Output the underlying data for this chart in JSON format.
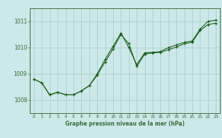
{
  "background_color": "#cce8e8",
  "plot_bg_color": "#cce8e8",
  "line_color": "#1a5c1a",
  "grid_color": "#aacccc",
  "axis_color": "#3a6b3a",
  "xlabel": "Graphe pression niveau de la mer (hPa)",
  "ylim": [
    1007.5,
    1011.5
  ],
  "xlim": [
    -0.5,
    23.5
  ],
  "yticks": [
    1008,
    1009,
    1010,
    1011
  ],
  "xticks": [
    0,
    1,
    2,
    3,
    4,
    5,
    6,
    7,
    8,
    9,
    10,
    11,
    12,
    13,
    14,
    15,
    16,
    17,
    18,
    19,
    20,
    21,
    22,
    23
  ],
  "series1_y": [
    1008.8,
    1008.65,
    1008.2,
    1008.3,
    1008.2,
    1008.2,
    1008.35,
    1008.55,
    1009.0,
    1009.55,
    1010.05,
    1010.55,
    1010.0,
    1009.35,
    1009.8,
    1009.82,
    1009.85,
    1010.0,
    1010.1,
    1010.2,
    1010.25,
    1010.7,
    1011.0,
    1011.05
  ],
  "series2_y": [
    1008.8,
    1008.65,
    1008.2,
    1008.3,
    1008.2,
    1008.2,
    1008.35,
    1008.55,
    1008.95,
    1009.45,
    1009.95,
    1010.5,
    1010.15,
    1009.28,
    1009.75,
    1009.8,
    1009.82,
    1009.92,
    1010.02,
    1010.15,
    1010.2,
    1010.65,
    1010.88,
    1010.93
  ]
}
